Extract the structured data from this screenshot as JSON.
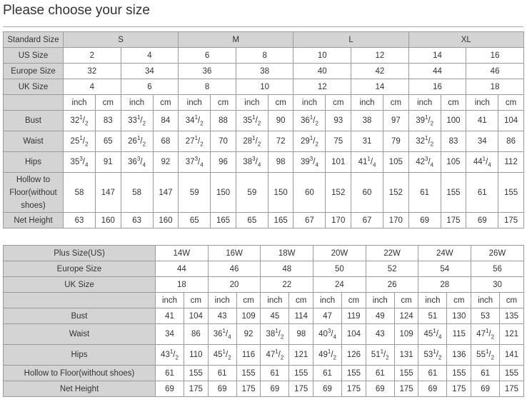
{
  "title": "Please choose your size",
  "colors": {
    "label_bg": "#d4d4d4",
    "border": "#9a9a9a",
    "text": "#333333"
  },
  "standard_table": {
    "header_label": "Standard Size",
    "standard_sizes": [
      "S",
      "M",
      "L",
      "XL"
    ],
    "us_label": "US Size",
    "us_sizes": [
      "2",
      "4",
      "6",
      "8",
      "10",
      "12",
      "14",
      "16"
    ],
    "europe_label": "Europe Size",
    "europe_sizes": [
      "32",
      "34",
      "36",
      "38",
      "40",
      "42",
      "44",
      "46"
    ],
    "uk_label": "UK Size",
    "uk_sizes": [
      "4",
      "6",
      "8",
      "10",
      "12",
      "14",
      "16",
      "18"
    ],
    "units": [
      "inch",
      "cm"
    ],
    "measurements": [
      {
        "label": "Bust",
        "values": [
          "32 1/2",
          "83",
          "33 1/2",
          "84",
          "34 1/2",
          "88",
          "35 1/2",
          "90",
          "36 1/2",
          "93",
          "38",
          "97",
          "39 1/2",
          "100",
          "41",
          "104"
        ]
      },
      {
        "label": "Waist",
        "values": [
          "25 1/2",
          "65",
          "26 1/2",
          "68",
          "27 1/2",
          "70",
          "28 1/2",
          "72",
          "29 1/2",
          "75",
          "31",
          "79",
          "32 1/2",
          "83",
          "34",
          "86"
        ]
      },
      {
        "label": "Hips",
        "values": [
          "35 3/4",
          "91",
          "36 3/4",
          "92",
          "37 3/4",
          "96",
          "38 3/4",
          "98",
          "39 3/4",
          "101",
          "41 1/4",
          "105",
          "42 3/4",
          "105",
          "44 1/4",
          "112"
        ]
      },
      {
        "label": "Hollow to Floor(without shoes)",
        "values": [
          "58",
          "147",
          "58",
          "147",
          "59",
          "150",
          "59",
          "150",
          "60",
          "152",
          "60",
          "152",
          "61",
          "155",
          "61",
          "155"
        ]
      },
      {
        "label": "Net Height",
        "values": [
          "63",
          "160",
          "63",
          "160",
          "65",
          "165",
          "65",
          "165",
          "67",
          "170",
          "67",
          "170",
          "69",
          "175",
          "69",
          "175"
        ]
      }
    ]
  },
  "plus_table": {
    "header_label": "Plus Size(US)",
    "plus_sizes": [
      "14W",
      "16W",
      "18W",
      "20W",
      "22W",
      "24W",
      "26W"
    ],
    "europe_label": "Europe Size",
    "europe_sizes": [
      "44",
      "46",
      "48",
      "50",
      "52",
      "54",
      "56"
    ],
    "uk_label": "UK Size",
    "uk_sizes": [
      "18",
      "20",
      "22",
      "24",
      "26",
      "28",
      "30"
    ],
    "units": [
      "inch",
      "cm"
    ],
    "measurements": [
      {
        "label": "Bust",
        "values": [
          "41",
          "104",
          "43",
          "109",
          "45",
          "114",
          "47",
          "119",
          "49",
          "124",
          "51",
          "130",
          "53",
          "135"
        ]
      },
      {
        "label": "Waist",
        "values": [
          "34",
          "86",
          "36 1/4",
          "92",
          "38 1/2",
          "98",
          "40 3/4",
          "104",
          "43",
          "109",
          "45 1/4",
          "115",
          "47 1/2",
          "121"
        ]
      },
      {
        "label": "Hips",
        "values": [
          "43 1/2",
          "110",
          "45 1/2",
          "116",
          "47 1/2",
          "121",
          "49 1/2",
          "126",
          "51 1/2",
          "131",
          "53 1/2",
          "136",
          "55 1/2",
          "141"
        ]
      },
      {
        "label": "Hollow to Floor(without shoes)",
        "values": [
          "61",
          "155",
          "61",
          "155",
          "61",
          "155",
          "61",
          "155",
          "61",
          "155",
          "61",
          "155",
          "61",
          "155"
        ]
      },
      {
        "label": "Net Height",
        "values": [
          "69",
          "175",
          "69",
          "175",
          "69",
          "175",
          "69",
          "175",
          "69",
          "175",
          "69",
          "175",
          "69",
          "175"
        ]
      }
    ]
  }
}
